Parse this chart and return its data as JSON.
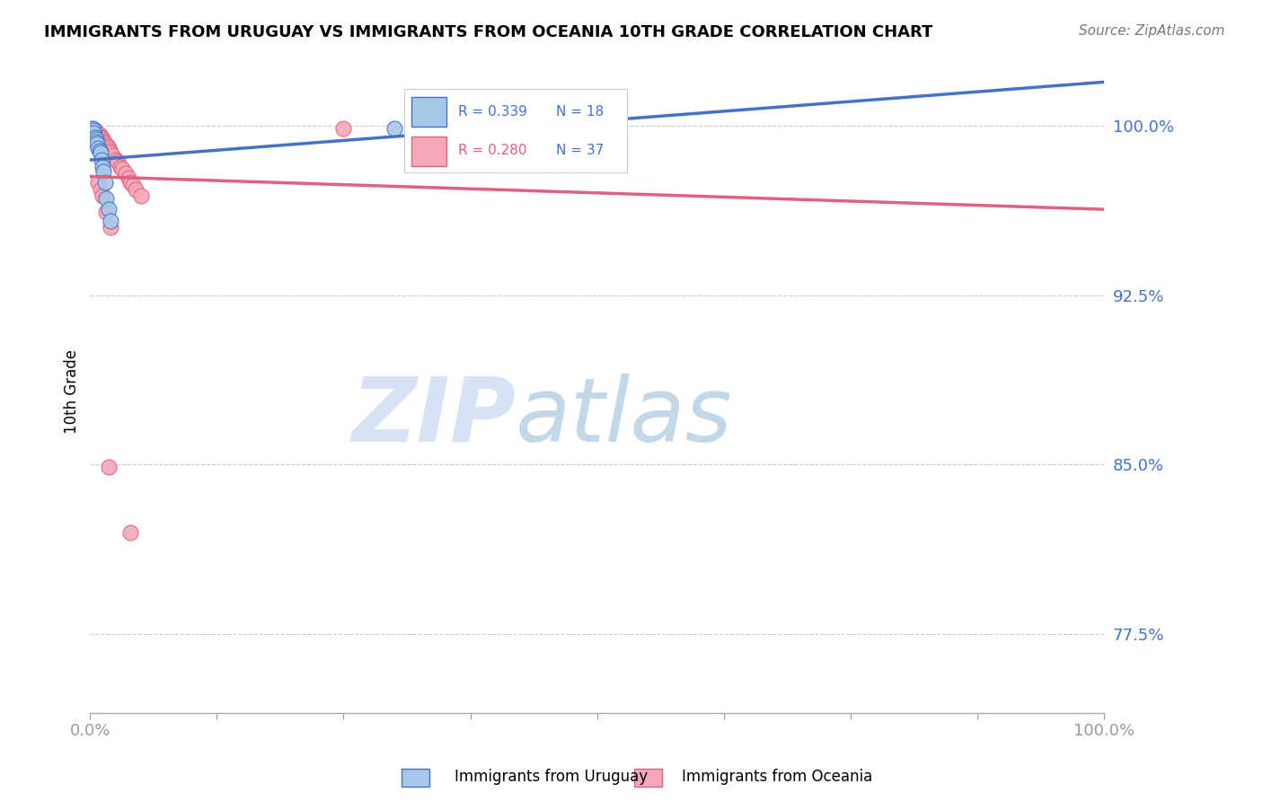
{
  "title": "IMMIGRANTS FROM URUGUAY VS IMMIGRANTS FROM OCEANIA 10TH GRADE CORRELATION CHART",
  "source": "Source: ZipAtlas.com",
  "ylabel": "10th Grade",
  "xlim": [
    0.0,
    1.0
  ],
  "ylim": [
    0.74,
    1.025
  ],
  "yticks": [
    0.775,
    0.85,
    0.925,
    1.0
  ],
  "ytick_labels": [
    "77.5%",
    "85.0%",
    "92.5%",
    "100.0%"
  ],
  "xticks": [
    0.0,
    0.125,
    0.25,
    0.375,
    0.5,
    0.625,
    0.75,
    0.875,
    1.0
  ],
  "xtick_labels": [
    "0.0%",
    "",
    "",
    "",
    "",
    "",
    "",
    "",
    "100.0%"
  ],
  "legend_r1": "R = 0.339",
  "legend_n1": "N = 18",
  "legend_r2": "R = 0.280",
  "legend_n2": "N = 37",
  "color_uruguay": "#a8c8e8",
  "color_oceania": "#f4a8b8",
  "color_line_uruguay": "#4472c4",
  "color_line_oceania": "#e06080",
  "watermark_zip": "ZIP",
  "watermark_atlas": "atlas",
  "uruguay_x": [
    0.002,
    0.003,
    0.003,
    0.005,
    0.006,
    0.006,
    0.007,
    0.008,
    0.009,
    0.01,
    0.011,
    0.012,
    0.013,
    0.015,
    0.016,
    0.018,
    0.02,
    0.3
  ],
  "uruguay_y": [
    0.999,
    0.998,
    0.997,
    0.995,
    0.994,
    0.993,
    0.992,
    0.99,
    0.989,
    0.988,
    0.985,
    0.982,
    0.98,
    0.975,
    0.968,
    0.963,
    0.958,
    0.999
  ],
  "oceania_x": [
    0.002,
    0.004,
    0.005,
    0.006,
    0.007,
    0.008,
    0.009,
    0.01,
    0.011,
    0.012,
    0.013,
    0.014,
    0.015,
    0.016,
    0.017,
    0.018,
    0.019,
    0.02,
    0.022,
    0.025,
    0.027,
    0.03,
    0.032,
    0.035,
    0.038,
    0.04,
    0.042,
    0.045,
    0.05,
    0.008,
    0.01,
    0.012,
    0.016,
    0.02,
    0.018,
    0.04,
    0.25
  ],
  "oceania_y": [
    0.999,
    0.998,
    0.998,
    0.997,
    0.997,
    0.996,
    0.996,
    0.995,
    0.995,
    0.994,
    0.993,
    0.993,
    0.992,
    0.991,
    0.991,
    0.99,
    0.989,
    0.988,
    0.987,
    0.985,
    0.984,
    0.982,
    0.981,
    0.979,
    0.977,
    0.975,
    0.974,
    0.972,
    0.969,
    0.975,
    0.972,
    0.969,
    0.962,
    0.955,
    0.849,
    0.82,
    0.999
  ],
  "background_color": "#ffffff",
  "grid_color": "#cccccc"
}
